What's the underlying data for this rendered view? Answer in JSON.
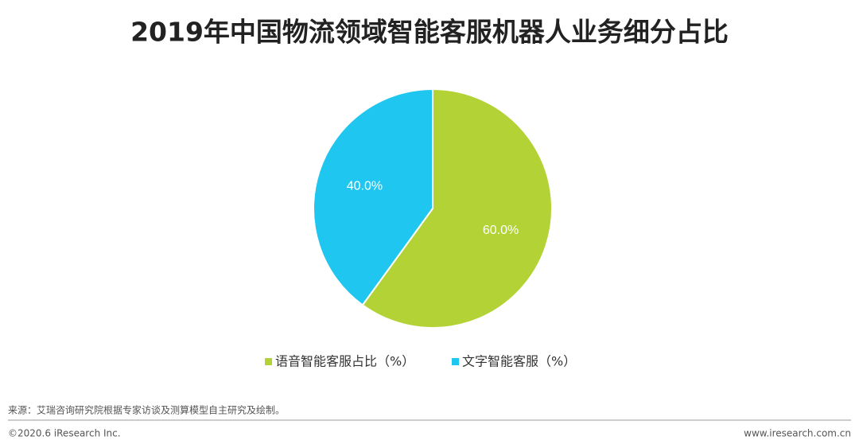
{
  "chart_data": {
    "type": "pie",
    "title": "2019年中国物流领域智能客服机器人业务细分占比",
    "categories": [
      "语音智能客服占比（%）",
      "文字智能客服（%）"
    ],
    "values": [
      60,
      40
    ],
    "value_labels": [
      "60.0%",
      "40.0%"
    ],
    "colors": [
      "#b2d235",
      "#1fc6ef"
    ],
    "legend": "bottom"
  },
  "footer": {
    "source": "来源：艾瑞咨询研究院根据专家访谈及测算模型自主研究及绘制。",
    "copyright": "©2020.6 iResearch Inc.",
    "website": "www.iresearch.com.cn"
  }
}
